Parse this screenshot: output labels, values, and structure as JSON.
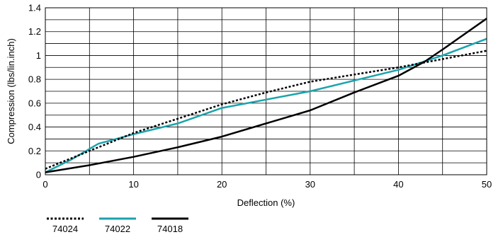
{
  "chart_data": {
    "type": "line",
    "xlabel": "Deflection (%)",
    "ylabel": "Compression (lbs/lin.inch)",
    "xlim": [
      0,
      50
    ],
    "ylim": [
      0,
      1.4
    ],
    "xticks": [
      0,
      10,
      20,
      30,
      40,
      50
    ],
    "yticks": [
      0,
      0.2,
      0.4,
      0.6,
      0.8,
      1,
      1.2,
      1.4
    ],
    "grid": true,
    "legend_position": "bottom-left",
    "series": [
      {
        "name": "74024",
        "color": "#000000",
        "style": "dotted",
        "points": [
          [
            0,
            0.05
          ],
          [
            5,
            0.2
          ],
          [
            10,
            0.35
          ],
          [
            15,
            0.47
          ],
          [
            20,
            0.59
          ],
          [
            25,
            0.69
          ],
          [
            30,
            0.78
          ],
          [
            35,
            0.84
          ],
          [
            40,
            0.9
          ],
          [
            45,
            0.97
          ],
          [
            50,
            1.04
          ]
        ]
      },
      {
        "name": "74022",
        "color": "#1aa3ad",
        "style": "solid",
        "points": [
          [
            0,
            0.02
          ],
          [
            3,
            0.13
          ],
          [
            6,
            0.26
          ],
          [
            10,
            0.34
          ],
          [
            15,
            0.43
          ],
          [
            20,
            0.56
          ],
          [
            25,
            0.63
          ],
          [
            30,
            0.7
          ],
          [
            35,
            0.79
          ],
          [
            40,
            0.88
          ],
          [
            45,
            1.0
          ],
          [
            50,
            1.14
          ]
        ]
      },
      {
        "name": "74018",
        "color": "#000000",
        "style": "solid",
        "points": [
          [
            0,
            0.02
          ],
          [
            5,
            0.08
          ],
          [
            10,
            0.15
          ],
          [
            15,
            0.23
          ],
          [
            20,
            0.32
          ],
          [
            25,
            0.43
          ],
          [
            30,
            0.54
          ],
          [
            35,
            0.69
          ],
          [
            40,
            0.83
          ],
          [
            43,
            0.95
          ],
          [
            45,
            1.05
          ],
          [
            50,
            1.31
          ]
        ]
      }
    ]
  }
}
